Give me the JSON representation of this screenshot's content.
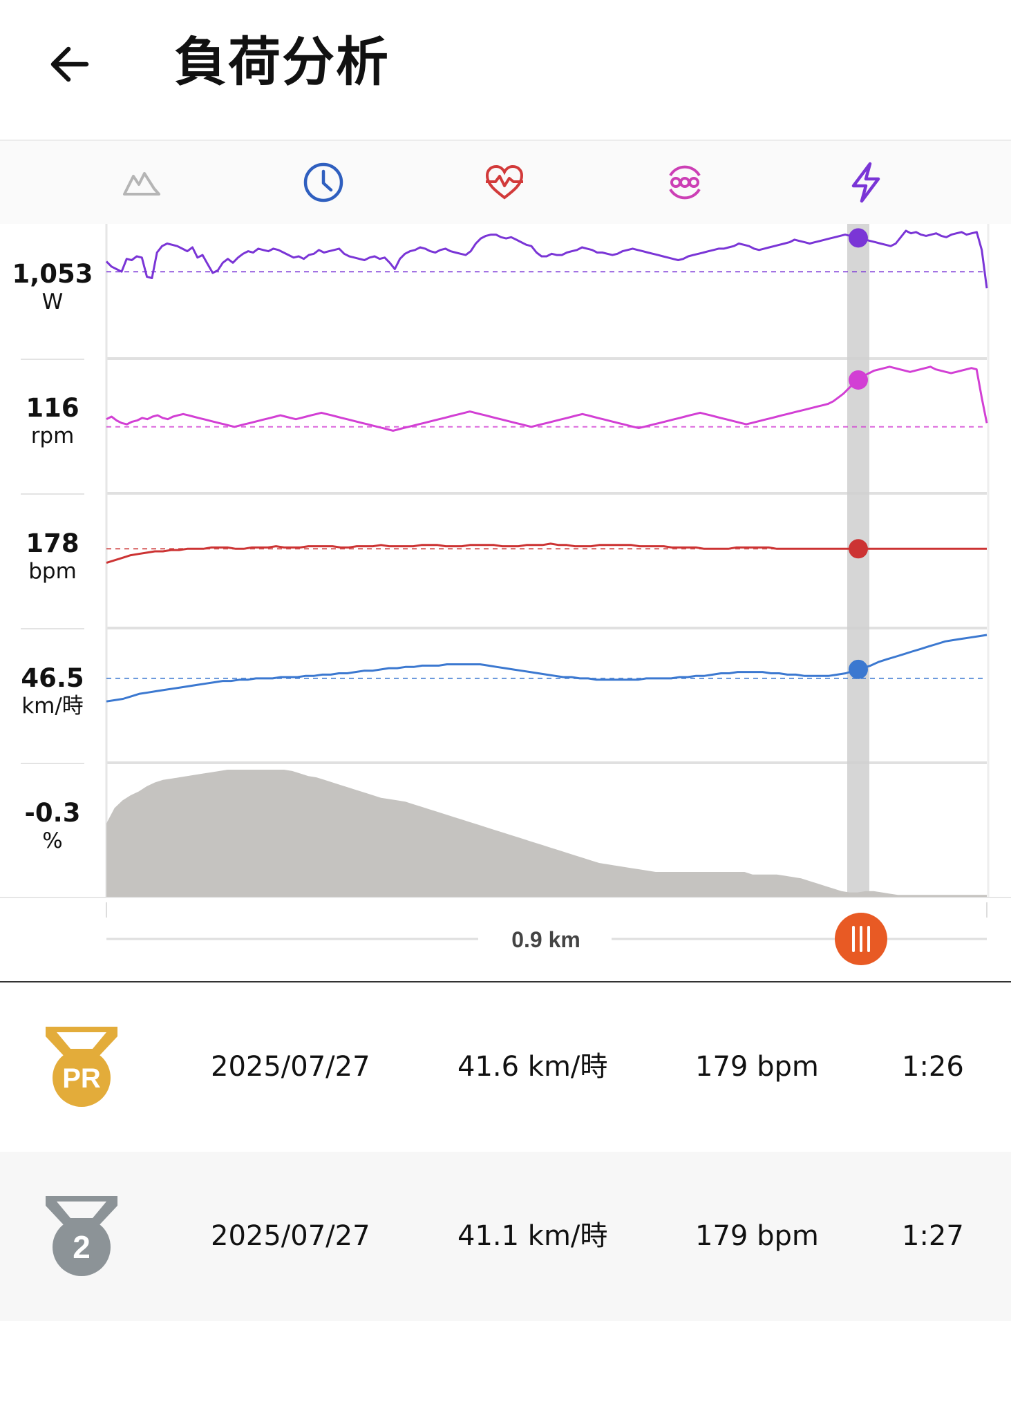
{
  "header": {
    "title": "負荷分析"
  },
  "tabs": [
    {
      "icon": "elevation-icon",
      "color": "#b5b5b5"
    },
    {
      "icon": "clock-icon",
      "color": "#2f5fbf"
    },
    {
      "icon": "heart-rate-icon",
      "color": "#d23a3a"
    },
    {
      "icon": "cadence-icon",
      "color": "#cc3fb5"
    },
    {
      "icon": "power-icon",
      "color": "#7a35d6"
    }
  ],
  "readouts": [
    {
      "value": "1,053",
      "unit": "W",
      "color": "#7a35d6"
    },
    {
      "value": "116",
      "unit": "rpm",
      "color": "#d23fd4"
    },
    {
      "value": "178",
      "unit": "bpm",
      "color": "#cc3333"
    },
    {
      "value": "46.5",
      "unit": "km/時",
      "color": "#3b78d0"
    },
    {
      "value": "-0.3",
      "unit": "%",
      "color": "#c5c3c0"
    }
  ],
  "scrubber": {
    "distance_label": "0.9 km",
    "handle_color": "#e85a24",
    "cursor_fraction": 0.854
  },
  "chart_data": {
    "type": "line",
    "series": [
      {
        "readout_index": 0,
        "avg": 0.68,
        "values": [
          0.76,
          0.72,
          0.7,
          0.68,
          0.78,
          0.77,
          0.8,
          0.79,
          0.64,
          0.63,
          0.83,
          0.88,
          0.9,
          0.89,
          0.88,
          0.86,
          0.84,
          0.87,
          0.79,
          0.81,
          0.74,
          0.67,
          0.69,
          0.75,
          0.78,
          0.75,
          0.79,
          0.82,
          0.84,
          0.83,
          0.86,
          0.85,
          0.84,
          0.86,
          0.85,
          0.83,
          0.81,
          0.79,
          0.8,
          0.78,
          0.81,
          0.82,
          0.85,
          0.83,
          0.84,
          0.85,
          0.86,
          0.82,
          0.8,
          0.79,
          0.78,
          0.77,
          0.79,
          0.8,
          0.78,
          0.79,
          0.75,
          0.7,
          0.78,
          0.82,
          0.84,
          0.85,
          0.87,
          0.86,
          0.84,
          0.83,
          0.85,
          0.86,
          0.84,
          0.83,
          0.82,
          0.81,
          0.84,
          0.9,
          0.94,
          0.96,
          0.97,
          0.97,
          0.95,
          0.94,
          0.95,
          0.93,
          0.91,
          0.89,
          0.88,
          0.83,
          0.8,
          0.8,
          0.82,
          0.81,
          0.81,
          0.83,
          0.84,
          0.85,
          0.87,
          0.86,
          0.85,
          0.83,
          0.83,
          0.82,
          0.81,
          0.82,
          0.84,
          0.85,
          0.86,
          0.85,
          0.84,
          0.83,
          0.82,
          0.81,
          0.8,
          0.79,
          0.78,
          0.77,
          0.78,
          0.8,
          0.81,
          0.82,
          0.83,
          0.84,
          0.85,
          0.86,
          0.86,
          0.87,
          0.88,
          0.9,
          0.89,
          0.88,
          0.86,
          0.85,
          0.86,
          0.87,
          0.88,
          0.89,
          0.9,
          0.91,
          0.93,
          0.92,
          0.91,
          0.9,
          0.91,
          0.92,
          0.93,
          0.94,
          0.95,
          0.96,
          0.97,
          0.96,
          0.95,
          0.94,
          0.93,
          0.92,
          0.91,
          0.9,
          0.89,
          0.88,
          0.9,
          0.95,
          1.0,
          0.98,
          0.99,
          0.97,
          0.96,
          0.97,
          0.98,
          0.96,
          0.95,
          0.97,
          0.98,
          0.99,
          0.97,
          0.98,
          0.99,
          0.85,
          0.55
        ]
      },
      {
        "readout_index": 1,
        "avg": 0.52,
        "values": [
          0.58,
          0.6,
          0.57,
          0.55,
          0.54,
          0.56,
          0.57,
          0.59,
          0.58,
          0.6,
          0.61,
          0.59,
          0.58,
          0.6,
          0.61,
          0.62,
          0.61,
          0.6,
          0.59,
          0.58,
          0.57,
          0.56,
          0.55,
          0.54,
          0.53,
          0.52,
          0.53,
          0.54,
          0.55,
          0.56,
          0.57,
          0.58,
          0.59,
          0.6,
          0.61,
          0.6,
          0.59,
          0.58,
          0.59,
          0.6,
          0.61,
          0.62,
          0.63,
          0.62,
          0.61,
          0.6,
          0.59,
          0.58,
          0.57,
          0.56,
          0.55,
          0.54,
          0.53,
          0.52,
          0.51,
          0.5,
          0.49,
          0.5,
          0.51,
          0.52,
          0.53,
          0.54,
          0.55,
          0.56,
          0.57,
          0.58,
          0.59,
          0.6,
          0.61,
          0.62,
          0.63,
          0.64,
          0.63,
          0.62,
          0.61,
          0.6,
          0.59,
          0.58,
          0.57,
          0.56,
          0.55,
          0.54,
          0.53,
          0.52,
          0.53,
          0.54,
          0.55,
          0.56,
          0.57,
          0.58,
          0.59,
          0.6,
          0.61,
          0.62,
          0.61,
          0.6,
          0.59,
          0.58,
          0.57,
          0.56,
          0.55,
          0.54,
          0.53,
          0.52,
          0.51,
          0.52,
          0.53,
          0.54,
          0.55,
          0.56,
          0.57,
          0.58,
          0.59,
          0.6,
          0.61,
          0.62,
          0.63,
          0.62,
          0.61,
          0.6,
          0.59,
          0.58,
          0.57,
          0.56,
          0.55,
          0.54,
          0.55,
          0.56,
          0.57,
          0.58,
          0.59,
          0.6,
          0.61,
          0.62,
          0.63,
          0.64,
          0.65,
          0.66,
          0.67,
          0.68,
          0.69,
          0.7,
          0.72,
          0.75,
          0.78,
          0.82,
          0.86,
          0.89,
          0.92,
          0.94,
          0.96,
          0.97,
          0.98,
          0.99,
          0.98,
          0.97,
          0.96,
          0.95,
          0.96,
          0.97,
          0.98,
          0.99,
          0.97,
          0.96,
          0.95,
          0.94,
          0.95,
          0.96,
          0.97,
          0.98,
          0.97,
          0.75,
          0.55
        ]
      },
      {
        "readout_index": 2,
        "avg": 0.62,
        "values": [
          0.51,
          0.53,
          0.55,
          0.57,
          0.58,
          0.59,
          0.6,
          0.6,
          0.61,
          0.61,
          0.62,
          0.62,
          0.62,
          0.63,
          0.63,
          0.63,
          0.62,
          0.62,
          0.63,
          0.63,
          0.63,
          0.64,
          0.63,
          0.63,
          0.63,
          0.64,
          0.64,
          0.64,
          0.64,
          0.63,
          0.63,
          0.64,
          0.64,
          0.64,
          0.65,
          0.64,
          0.64,
          0.64,
          0.64,
          0.65,
          0.65,
          0.65,
          0.64,
          0.64,
          0.64,
          0.65,
          0.65,
          0.65,
          0.65,
          0.64,
          0.64,
          0.64,
          0.65,
          0.65,
          0.65,
          0.66,
          0.65,
          0.65,
          0.64,
          0.64,
          0.64,
          0.65,
          0.65,
          0.65,
          0.65,
          0.65,
          0.64,
          0.64,
          0.64,
          0.64,
          0.63,
          0.63,
          0.63,
          0.63,
          0.62,
          0.62,
          0.62,
          0.62,
          0.63,
          0.63,
          0.63,
          0.63,
          0.63,
          0.62,
          0.62,
          0.62,
          0.62,
          0.62,
          0.62,
          0.62,
          0.62,
          0.62,
          0.62,
          0.62,
          0.62,
          0.62,
          0.62,
          0.62,
          0.62,
          0.62,
          0.62,
          0.62,
          0.62,
          0.62,
          0.62,
          0.62,
          0.62,
          0.62,
          0.62,
          0.62
        ]
      },
      {
        "readout_index": 3,
        "avg": 0.66,
        "values": [
          0.48,
          0.49,
          0.5,
          0.52,
          0.54,
          0.55,
          0.56,
          0.57,
          0.58,
          0.59,
          0.6,
          0.61,
          0.62,
          0.63,
          0.64,
          0.64,
          0.65,
          0.65,
          0.66,
          0.66,
          0.66,
          0.67,
          0.67,
          0.67,
          0.68,
          0.68,
          0.69,
          0.69,
          0.7,
          0.7,
          0.71,
          0.72,
          0.72,
          0.73,
          0.74,
          0.74,
          0.75,
          0.75,
          0.76,
          0.76,
          0.76,
          0.77,
          0.77,
          0.77,
          0.77,
          0.77,
          0.76,
          0.75,
          0.74,
          0.73,
          0.72,
          0.71,
          0.7,
          0.69,
          0.68,
          0.67,
          0.67,
          0.66,
          0.66,
          0.65,
          0.65,
          0.65,
          0.65,
          0.65,
          0.65,
          0.66,
          0.66,
          0.66,
          0.66,
          0.67,
          0.67,
          0.68,
          0.68,
          0.69,
          0.7,
          0.7,
          0.71,
          0.71,
          0.71,
          0.71,
          0.7,
          0.7,
          0.69,
          0.69,
          0.68,
          0.68,
          0.68,
          0.68,
          0.69,
          0.7,
          0.72,
          0.74,
          0.76,
          0.79,
          0.81,
          0.83,
          0.85,
          0.87,
          0.89,
          0.91,
          0.93,
          0.95,
          0.96,
          0.97,
          0.98,
          0.99,
          1.0
        ]
      },
      {
        "readout_index": 4,
        "area": true,
        "values": [
          0.58,
          0.7,
          0.76,
          0.8,
          0.83,
          0.87,
          0.9,
          0.92,
          0.93,
          0.94,
          0.95,
          0.96,
          0.97,
          0.98,
          0.99,
          1.0,
          1.0,
          1.0,
          1.0,
          1.0,
          1.0,
          1.0,
          1.0,
          0.99,
          0.97,
          0.95,
          0.94,
          0.92,
          0.9,
          0.88,
          0.86,
          0.84,
          0.82,
          0.8,
          0.78,
          0.77,
          0.76,
          0.75,
          0.73,
          0.71,
          0.69,
          0.67,
          0.65,
          0.63,
          0.61,
          0.59,
          0.57,
          0.55,
          0.53,
          0.51,
          0.49,
          0.47,
          0.45,
          0.43,
          0.41,
          0.39,
          0.37,
          0.35,
          0.33,
          0.31,
          0.29,
          0.27,
          0.26,
          0.25,
          0.24,
          0.23,
          0.22,
          0.21,
          0.2,
          0.2,
          0.2,
          0.2,
          0.2,
          0.2,
          0.2,
          0.2,
          0.2,
          0.2,
          0.2,
          0.2,
          0.18,
          0.18,
          0.18,
          0.18,
          0.17,
          0.16,
          0.15,
          0.13,
          0.11,
          0.09,
          0.07,
          0.05,
          0.04,
          0.04,
          0.05,
          0.05,
          0.04,
          0.03,
          0.02,
          0.02,
          0.02,
          0.02,
          0.02,
          0.02,
          0.02,
          0.02,
          0.02,
          0.02,
          0.02,
          0.02
        ]
      }
    ]
  },
  "segments": [
    {
      "medal": "PR",
      "medal_color": "#e3ac3a",
      "date": "2025/07/27",
      "speed": "41.6 km/時",
      "hr": "179 bpm",
      "time": "1:26",
      "bg": "#ffffff"
    },
    {
      "medal": "2",
      "medal_color": "#8c9397",
      "date": "2025/07/27",
      "speed": "41.1 km/時",
      "hr": "179 bpm",
      "time": "1:27",
      "bg": "#f7f7f7"
    }
  ]
}
